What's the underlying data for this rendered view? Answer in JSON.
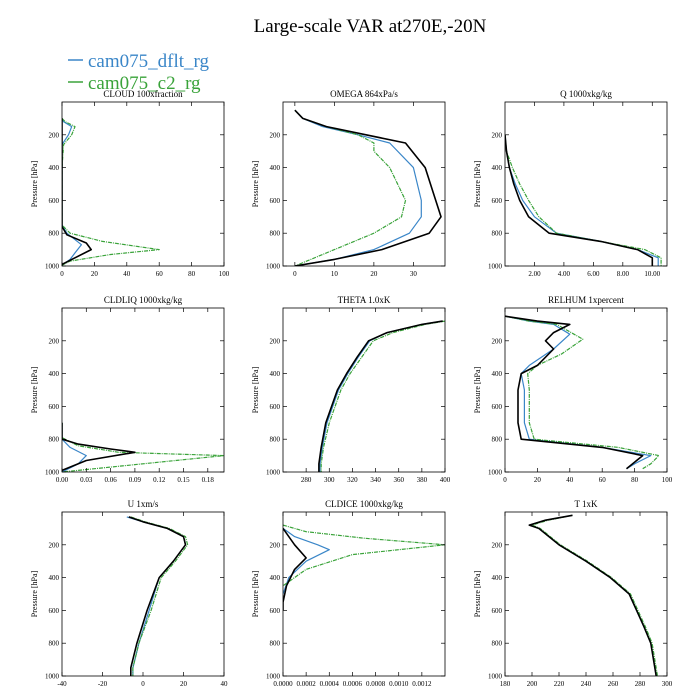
{
  "figure": {
    "title": "Large-scale VAR at270E,-20N",
    "ylabel": "Pressure [hPa]"
  },
  "legend": [
    {
      "name": "cam075_dflt_rg",
      "color": "#3a86c8",
      "dash": ""
    },
    {
      "name": "cam075_c2_rg",
      "color": "#3aa33a",
      "dash": "4,1,1,1"
    }
  ],
  "colors": {
    "third_series": "#000000"
  },
  "chart_data": [
    {
      "type": "line",
      "title": "CLOUD 100xfraction",
      "xlim": [
        0,
        100
      ],
      "ylim": [
        1000,
        0
      ],
      "xticks": [
        0,
        20,
        40,
        60,
        80,
        100
      ],
      "xtick_labels": [
        "0",
        "20",
        "40",
        "60",
        "80",
        "100"
      ],
      "yticks": [
        200,
        400,
        600,
        800,
        1000
      ],
      "ytick_labels": [
        "200",
        "400",
        "600",
        "800",
        "1000"
      ],
      "series": [
        {
          "name": "cam075_dflt_rg",
          "x": [
            0,
            1,
            6,
            4,
            0,
            0,
            0,
            0,
            3,
            12,
            8,
            5,
            0
          ],
          "y": [
            100,
            120,
            150,
            200,
            260,
            400,
            600,
            750,
            800,
            870,
            920,
            960,
            995
          ]
        },
        {
          "name": "cam075_c2_rg",
          "x": [
            0,
            2,
            8,
            6,
            1,
            0,
            0,
            0,
            5,
            25,
            60,
            30,
            5,
            0
          ],
          "y": [
            100,
            120,
            150,
            200,
            260,
            400,
            600,
            750,
            800,
            850,
            900,
            930,
            970,
            995
          ]
        },
        {
          "name": "",
          "x": [
            0,
            0,
            0,
            0,
            3,
            15,
            18,
            10,
            0
          ],
          "y": [
            100,
            400,
            600,
            760,
            810,
            860,
            900,
            940,
            990
          ]
        }
      ]
    },
    {
      "type": "line",
      "title": "OMEGA 864xPa/s",
      "xlim": [
        -3,
        38
      ],
      "ylim": [
        1000,
        0
      ],
      "xticks": [
        0,
        10,
        20,
        30
      ],
      "xtick_labels": [
        "0",
        "10",
        "20",
        "30"
      ],
      "yticks": [
        200,
        400,
        600,
        800,
        1000
      ],
      "ytick_labels": [
        "200",
        "400",
        "600",
        "800",
        "1000"
      ],
      "series": [
        {
          "name": "cam075_dflt_rg",
          "x": [
            0,
            2,
            7,
            16,
            24,
            30,
            32,
            32,
            29,
            20,
            10,
            0
          ],
          "y": [
            50,
            100,
            150,
            200,
            250,
            400,
            600,
            700,
            800,
            900,
            960,
            1000
          ]
        },
        {
          "name": "cam075_c2_rg",
          "x": [
            0,
            2,
            8,
            16,
            20,
            20,
            24,
            28,
            27,
            20,
            10,
            0
          ],
          "y": [
            50,
            100,
            150,
            200,
            250,
            300,
            400,
            600,
            700,
            800,
            900,
            1000
          ]
        },
        {
          "name": "",
          "x": [
            0,
            2,
            8,
            18,
            28,
            33,
            35,
            37,
            34,
            22,
            10,
            0
          ],
          "y": [
            50,
            100,
            150,
            200,
            250,
            400,
            550,
            700,
            800,
            900,
            960,
            1000
          ]
        }
      ]
    },
    {
      "type": "line",
      "title": "Q 1000xkg/kg",
      "xlim": [
        0,
        11
      ],
      "ylim": [
        1000,
        0
      ],
      "xticks": [
        2,
        4,
        6,
        8,
        10
      ],
      "xtick_labels": [
        "2.00",
        "4.00",
        "6.00",
        "8.00",
        "10.00"
      ],
      "yticks": [
        200,
        400,
        600,
        800,
        1000
      ],
      "ytick_labels": [
        "200",
        "400",
        "600",
        "800",
        "1000"
      ],
      "series": [
        {
          "name": "cam075_dflt_rg",
          "x": [
            0,
            0.1,
            0.3,
            0.7,
            1.2,
            2.0,
            3.5,
            6.5,
            9.0,
            10.4,
            10.4
          ],
          "y": [
            200,
            300,
            400,
            500,
            600,
            700,
            800,
            850,
            900,
            950,
            1000
          ]
        },
        {
          "name": "cam075_c2_rg",
          "x": [
            0,
            0.1,
            0.5,
            1.0,
            1.6,
            2.3,
            3.5,
            6.5,
            9.5,
            10.6,
            10.6
          ],
          "y": [
            200,
            300,
            400,
            500,
            600,
            700,
            800,
            850,
            900,
            950,
            1000
          ]
        },
        {
          "name": "",
          "x": [
            0,
            0.1,
            0.3,
            0.6,
            1.0,
            1.6,
            3.0,
            6.5,
            9.0,
            10.0,
            10.0
          ],
          "y": [
            200,
            300,
            400,
            500,
            600,
            700,
            800,
            850,
            900,
            950,
            1000
          ]
        }
      ]
    },
    {
      "type": "line",
      "title": "CLDLIQ 1000xkg/kg",
      "xlim": [
        0,
        0.2
      ],
      "ylim": [
        1000,
        0
      ],
      "xticks": [
        0,
        0.03,
        0.06,
        0.09,
        0.12,
        0.15,
        0.18
      ],
      "xtick_labels": [
        "0.00",
        "0.03",
        "0.06",
        "0.09",
        "0.12",
        "0.15",
        "0.18"
      ],
      "yticks": [
        200,
        400,
        600,
        800,
        1000
      ],
      "ytick_labels": [
        "200",
        "400",
        "600",
        "800",
        "1000"
      ],
      "series": [
        {
          "name": "cam075_dflt_rg",
          "x": [
            0,
            0,
            0.01,
            0.03,
            0.02,
            0
          ],
          "y": [
            700,
            800,
            850,
            900,
            950,
            1000
          ]
        },
        {
          "name": "cam075_c2_rg",
          "x": [
            0,
            0,
            0.02,
            0.07,
            0.2,
            0.1,
            0
          ],
          "y": [
            700,
            790,
            840,
            880,
            900,
            950,
            1000
          ]
        },
        {
          "name": "",
          "x": [
            0,
            0,
            0.02,
            0.06,
            0.09,
            0.03,
            0
          ],
          "y": [
            700,
            800,
            830,
            860,
            880,
            930,
            990
          ]
        }
      ]
    },
    {
      "type": "line",
      "title": "THETA 1.0xK",
      "xlim": [
        260,
        400
      ],
      "ylim": [
        1000,
        0
      ],
      "xticks": [
        280,
        300,
        320,
        340,
        360,
        380,
        400
      ],
      "xtick_labels": [
        "280",
        "300",
        "320",
        "340",
        "360",
        "380",
        "400"
      ],
      "yticks": [
        200,
        400,
        600,
        800,
        1000
      ],
      "ytick_labels": [
        "200",
        "400",
        "600",
        "800",
        "1000"
      ],
      "series": [
        {
          "name": "cam075_dflt_rg",
          "x": [
            398,
            380,
            350,
            335,
            325,
            316,
            308,
            298,
            294,
            292,
            292
          ],
          "y": [
            80,
            100,
            150,
            200,
            300,
            400,
            500,
            700,
            850,
            950,
            1000
          ]
        },
        {
          "name": "cam075_c2_rg",
          "x": [
            400,
            383,
            355,
            338,
            328,
            318,
            310,
            300,
            295,
            293,
            293
          ],
          "y": [
            80,
            100,
            150,
            200,
            300,
            400,
            500,
            700,
            850,
            950,
            1000
          ]
        },
        {
          "name": "",
          "x": [
            398,
            380,
            350,
            334,
            324,
            315,
            307,
            297,
            293,
            291,
            291
          ],
          "y": [
            80,
            100,
            150,
            200,
            300,
            400,
            500,
            700,
            850,
            950,
            1000
          ]
        }
      ]
    },
    {
      "type": "line",
      "title": "RELHUM 1xpercent",
      "xlim": [
        0,
        100
      ],
      "ylim": [
        1000,
        0
      ],
      "xticks": [
        0,
        20,
        40,
        60,
        80,
        100
      ],
      "xtick_labels": [
        "0",
        "20",
        "40",
        "60",
        "80",
        "100"
      ],
      "yticks": [
        200,
        400,
        600,
        800,
        1000
      ],
      "ytick_labels": [
        "200",
        "400",
        "600",
        "800",
        "1000"
      ],
      "series": [
        {
          "name": "cam075_dflt_rg",
          "x": [
            0,
            15,
            30,
            40,
            30,
            15,
            10,
            12,
            12,
            15,
            60,
            90,
            80,
            75
          ],
          "y": [
            50,
            80,
            100,
            160,
            250,
            350,
            400,
            500,
            700,
            800,
            850,
            900,
            950,
            980
          ]
        },
        {
          "name": "cam075_c2_rg",
          "x": [
            0,
            15,
            32,
            48,
            35,
            20,
            14,
            15,
            15,
            18,
            70,
            95,
            90,
            85
          ],
          "y": [
            50,
            80,
            100,
            190,
            280,
            350,
            400,
            500,
            700,
            800,
            850,
            900,
            950,
            980
          ]
        },
        {
          "name": "",
          "x": [
            0,
            20,
            40,
            30,
            25,
            30,
            20,
            10,
            8,
            8,
            10,
            60,
            85,
            75
          ],
          "y": [
            50,
            80,
            100,
            150,
            200,
            250,
            350,
            400,
            500,
            700,
            800,
            850,
            900,
            980
          ]
        }
      ]
    },
    {
      "type": "line",
      "title": "U 1xm/s",
      "xlim": [
        -40,
        40
      ],
      "ylim": [
        1000,
        0
      ],
      "xticks": [
        -40,
        -20,
        0,
        20,
        40
      ],
      "xtick_labels": [
        "-40",
        "-20",
        "0",
        "20",
        "40"
      ],
      "yticks": [
        200,
        400,
        600,
        800,
        1000
      ],
      "ytick_labels": [
        "200",
        "400",
        "600",
        "800",
        "1000"
      ],
      "series": [
        {
          "name": "cam075_dflt_rg",
          "x": [
            -8,
            0,
            12,
            20,
            21,
            15,
            8,
            3,
            -2,
            -5,
            -5
          ],
          "y": [
            30,
            60,
            100,
            150,
            200,
            300,
            400,
            600,
            800,
            950,
            1000
          ]
        },
        {
          "name": "cam075_c2_rg",
          "x": [
            -6,
            1,
            13,
            21,
            22,
            16,
            9,
            4,
            -2,
            -5,
            -5
          ],
          "y": [
            30,
            60,
            100,
            150,
            200,
            300,
            400,
            600,
            800,
            950,
            1000
          ]
        },
        {
          "name": "",
          "x": [
            -7,
            0,
            12,
            20,
            21,
            15,
            8,
            2,
            -3,
            -6,
            -6
          ],
          "y": [
            30,
            60,
            100,
            150,
            200,
            300,
            400,
            600,
            800,
            950,
            1000
          ]
        }
      ]
    },
    {
      "type": "line",
      "title": "CLDICE 1000xkg/kg",
      "xlim": [
        0,
        0.0014
      ],
      "ylim": [
        1000,
        0
      ],
      "xticks": [
        0,
        0.0002,
        0.0004,
        0.0006,
        0.0008,
        0.001,
        0.0012
      ],
      "xtick_labels": [
        "0.0000",
        "0.0002",
        "0.0004",
        "0.0006",
        "0.0008",
        "0.0010",
        "0.0012"
      ],
      "yticks": [
        200,
        400,
        600,
        800,
        1000
      ],
      "ytick_labels": [
        "200",
        "400",
        "600",
        "800",
        "1000"
      ],
      "series": [
        {
          "name": "cam075_dflt_rg",
          "x": [
            0,
            0.0001,
            0.0003,
            0.0004,
            0.0002,
            5e-05,
            0
          ],
          "y": [
            100,
            150,
            200,
            230,
            300,
            400,
            500
          ]
        },
        {
          "name": "cam075_c2_rg",
          "x": [
            0,
            0.0002,
            0.0007,
            0.0014,
            0.0006,
            0.0002,
            0
          ],
          "y": [
            80,
            120,
            160,
            200,
            260,
            350,
            450
          ]
        },
        {
          "name": "",
          "x": [
            0,
            0.0001,
            0.0002,
            0.0001,
            3e-05,
            0,
            0
          ],
          "y": [
            100,
            200,
            280,
            350,
            450,
            550,
            600
          ]
        }
      ]
    },
    {
      "type": "line",
      "title": "T 1xK",
      "xlim": [
        180,
        300
      ],
      "ylim": [
        1000,
        0
      ],
      "xticks": [
        180,
        200,
        220,
        240,
        260,
        280,
        300
      ],
      "xtick_labels": [
        "180",
        "200",
        "220",
        "240",
        "260",
        "280",
        "300"
      ],
      "yticks": [
        200,
        400,
        600,
        800,
        1000
      ],
      "ytick_labels": [
        "200",
        "400",
        "600",
        "800",
        "1000"
      ],
      "series": [
        {
          "name": "cam075_dflt_rg",
          "x": [
            230,
            210,
            198,
            205,
            220,
            240,
            258,
            272,
            283,
            288,
            292
          ],
          "y": [
            20,
            50,
            80,
            100,
            200,
            300,
            400,
            500,
            700,
            800,
            1000
          ]
        },
        {
          "name": "cam075_c2_rg",
          "x": [
            230,
            212,
            200,
            206,
            221,
            241,
            259,
            273,
            284,
            289,
            293
          ],
          "y": [
            20,
            50,
            80,
            100,
            200,
            300,
            400,
            500,
            700,
            800,
            1000
          ]
        },
        {
          "name": "",
          "x": [
            230,
            210,
            198,
            205,
            220,
            240,
            258,
            272,
            283,
            288,
            292
          ],
          "y": [
            20,
            50,
            80,
            100,
            200,
            300,
            400,
            500,
            700,
            800,
            1000
          ]
        }
      ]
    }
  ]
}
